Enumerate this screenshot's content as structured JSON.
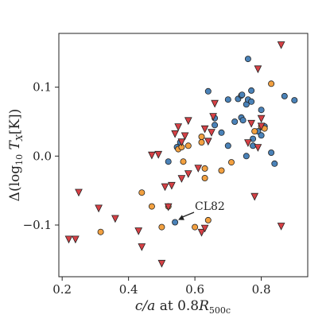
{
  "chart_data": {
    "type": "scatter",
    "xlabel_main": "c/a",
    "xlabel_mid": " at 0.8",
    "xlabel_R": "R",
    "xlabel_sub": "500c",
    "ylabel_prefix": "Δ(log",
    "ylabel_sub10": "10",
    "ylabel_T": " T",
    "ylabel_subX": "X",
    "ylabel_suffix": "[K])",
    "xlim": [
      0.19,
      0.94
    ],
    "ylim": [
      -0.175,
      0.178
    ],
    "x_ticks": [
      0.2,
      0.4,
      0.6,
      0.8
    ],
    "x_tick_labels": [
      "0.2",
      "0.4",
      "0.6",
      "0.8"
    ],
    "y_ticks": [
      -0.1,
      0.0,
      0.1
    ],
    "y_tick_labels": [
      "−0.1",
      "0.0",
      "0.1"
    ],
    "grid": false,
    "annotation": {
      "text": "CL82",
      "x": 0.54,
      "y": -0.096
    },
    "colors": {
      "blue": "#4a82b8",
      "orange": "#f2a040",
      "red": "#d64045",
      "edge": "#222222"
    },
    "series": [
      {
        "marker": "circle",
        "color": "blue",
        "points": [
          [
            0.54,
            -0.096
          ],
          [
            0.52,
            -0.008
          ],
          [
            0.546,
            0.013
          ],
          [
            0.556,
            0.02
          ],
          [
            0.64,
            0.094
          ],
          [
            0.66,
            0.045
          ],
          [
            0.68,
            0.034
          ],
          [
            0.7,
            0.082
          ],
          [
            0.72,
            0.05
          ],
          [
            0.73,
            0.083
          ],
          [
            0.74,
            0.088
          ],
          [
            0.742,
            0.089
          ],
          [
            0.74,
            0.056
          ],
          [
            0.745,
            0.052
          ],
          [
            0.755,
            0.075
          ],
          [
            0.76,
            0.082
          ],
          [
            0.76,
            0.141
          ],
          [
            0.77,
            0.095
          ],
          [
            0.77,
            0.079
          ],
          [
            0.775,
            0.025
          ],
          [
            0.775,
            0.015
          ],
          [
            0.79,
            0.036
          ],
          [
            0.8,
            0.067
          ],
          [
            0.8,
            0.03
          ],
          [
            0.81,
            0.043
          ],
          [
            0.83,
            0.005
          ],
          [
            0.84,
            -0.011
          ],
          [
            0.87,
            0.087
          ],
          [
            0.9,
            0.081
          ],
          [
            0.66,
            0.055
          ],
          [
            0.7,
            0.015
          ],
          [
            0.755,
            0.0
          ]
        ]
      },
      {
        "marker": "circle",
        "color": "orange",
        "points": [
          [
            0.316,
            -0.11
          ],
          [
            0.44,
            -0.053
          ],
          [
            0.47,
            -0.073
          ],
          [
            0.5,
            -0.103
          ],
          [
            0.52,
            -0.073
          ],
          [
            0.55,
            0.01
          ],
          [
            0.56,
            0.013
          ],
          [
            0.565,
            -0.008
          ],
          [
            0.58,
            0.015
          ],
          [
            0.6,
            -0.103
          ],
          [
            0.64,
            -0.093
          ],
          [
            0.63,
            -0.032
          ],
          [
            0.63,
            -0.018
          ],
          [
            0.62,
            0.028
          ],
          [
            0.68,
            -0.021
          ],
          [
            0.71,
            -0.009
          ],
          [
            0.78,
            0.036
          ],
          [
            0.8,
            0.043
          ],
          [
            0.81,
            0.04
          ],
          [
            0.83,
            0.105
          ],
          [
            0.62,
            0.02
          ]
        ]
      },
      {
        "marker": "triangle-down",
        "color": "red",
        "points": [
          [
            0.22,
            -0.12
          ],
          [
            0.24,
            -0.12
          ],
          [
            0.25,
            -0.052
          ],
          [
            0.31,
            -0.075
          ],
          [
            0.36,
            -0.09
          ],
          [
            0.43,
            -0.108
          ],
          [
            0.44,
            -0.131
          ],
          [
            0.47,
            0.002
          ],
          [
            0.49,
            0.003
          ],
          [
            0.5,
            -0.155
          ],
          [
            0.51,
            -0.044
          ],
          [
            0.52,
            -0.073
          ],
          [
            0.53,
            -0.042
          ],
          [
            0.54,
            0.033
          ],
          [
            0.55,
            0.043
          ],
          [
            0.56,
            -0.032
          ],
          [
            0.56,
            0.021
          ],
          [
            0.57,
            0.03
          ],
          [
            0.58,
            -0.025
          ],
          [
            0.58,
            0.052
          ],
          [
            0.61,
            -0.017
          ],
          [
            0.62,
            -0.11
          ],
          [
            0.63,
            -0.104
          ],
          [
            0.63,
            0.04
          ],
          [
            0.64,
            0.022
          ],
          [
            0.65,
            0.035
          ],
          [
            0.66,
            0.077
          ],
          [
            0.655,
            0.058
          ],
          [
            0.76,
            0.02
          ],
          [
            0.77,
            0.048
          ],
          [
            0.78,
            -0.058
          ],
          [
            0.79,
            0.127
          ],
          [
            0.79,
            0.013
          ],
          [
            0.8,
            0.055
          ],
          [
            0.8,
            0.044
          ],
          [
            0.86,
            0.162
          ],
          [
            0.86,
            -0.101
          ]
        ]
      }
    ]
  }
}
